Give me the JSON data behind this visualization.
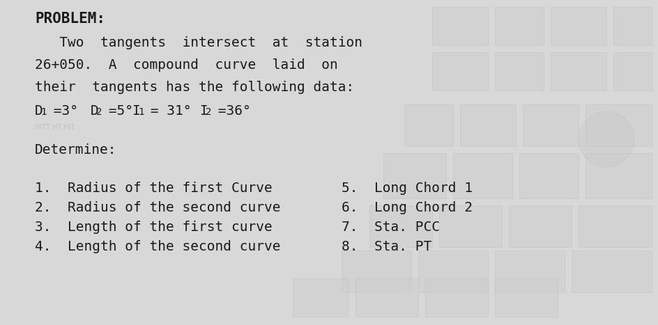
{
  "title": "PROBLEM:",
  "para_line1": "   Two  tangents  intersect  at  station",
  "para_line2": "26+050.  A  compound  curve  laid  on",
  "para_line3": "their  tangents has the following data:",
  "data_line_d1": "D",
  "data_line_d1_sub": "1",
  "data_line_d1_val": " =3°",
  "data_line_d2": "D",
  "data_line_d2_sub": "2",
  "data_line_d2_val": " =5°",
  "data_line_i1": "I",
  "data_line_i1_sub": "1",
  "data_line_i1_val": " = 31°",
  "data_line_i2": "I",
  "data_line_i2_sub": "2",
  "data_line_i2_val": " =36°",
  "determine_label": "Determine:",
  "left_items": [
    "1.  Radius of the first Curve",
    "2.  Radius of the second curve",
    "3.  Length of the first curve",
    "4.  Length of the second curve"
  ],
  "right_items": [
    "5.  Long Chord 1",
    "6.  Long Chord 2",
    "7.  Sta. PCC",
    "8.  Sta. PT"
  ],
  "bg_color": "#d8d8d8",
  "text_color": "#1a1a1a",
  "title_fontsize": 15,
  "body_fontsize": 14,
  "small_fontsize": 10
}
